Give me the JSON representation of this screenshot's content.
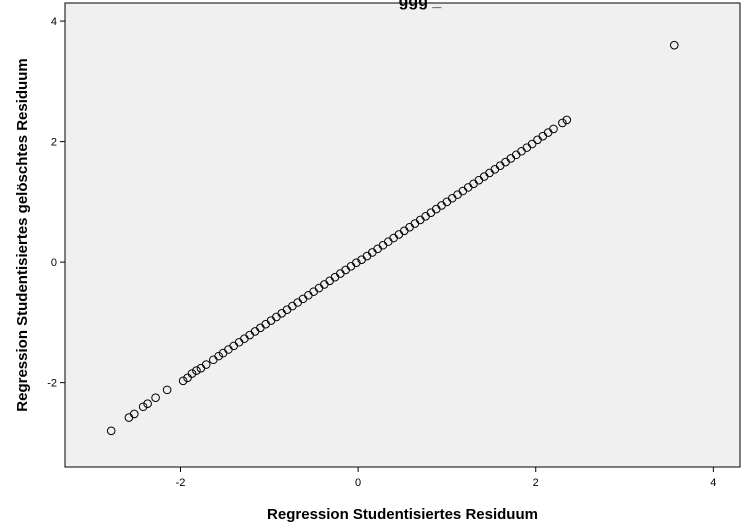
{
  "chart_data": {
    "type": "scatter",
    "title": "ggg       _",
    "xlabel": "Regression Studentisiertes Residuum",
    "ylabel": "Regression Studentisiertes gelöschtes Residuum",
    "xlim": [
      -3.3,
      4.3
    ],
    "ylim": [
      -3.4,
      4.3
    ],
    "x_ticks": [
      -2,
      0,
      2,
      4
    ],
    "y_ticks": [
      -2,
      0,
      2,
      4
    ],
    "grid": false,
    "plot_background": "#f0f0f0",
    "marker": "open-circle",
    "marker_color": "#000000",
    "points": [
      [
        -2.78,
        -2.8
      ],
      [
        -2.58,
        -2.58
      ],
      [
        -2.52,
        -2.52
      ],
      [
        -2.42,
        -2.4
      ],
      [
        -2.37,
        -2.35
      ],
      [
        -2.28,
        -2.25
      ],
      [
        -2.15,
        -2.12
      ],
      [
        -1.97,
        -1.97
      ],
      [
        -1.92,
        -1.92
      ],
      [
        -1.87,
        -1.85
      ],
      [
        -1.82,
        -1.8
      ],
      [
        -1.77,
        -1.76
      ],
      [
        -1.71,
        -1.7
      ],
      [
        -1.63,
        -1.62
      ],
      [
        -1.57,
        -1.56
      ],
      [
        -1.52,
        -1.51
      ],
      [
        -1.46,
        -1.45
      ],
      [
        -1.4,
        -1.39
      ],
      [
        -1.34,
        -1.33
      ],
      [
        -1.28,
        -1.27
      ],
      [
        -1.22,
        -1.21
      ],
      [
        -1.16,
        -1.15
      ],
      [
        -1.1,
        -1.09
      ],
      [
        -1.04,
        -1.03
      ],
      [
        -0.98,
        -0.97
      ],
      [
        -0.92,
        -0.91
      ],
      [
        -0.86,
        -0.85
      ],
      [
        -0.8,
        -0.79
      ],
      [
        -0.74,
        -0.73
      ],
      [
        -0.68,
        -0.67
      ],
      [
        -0.62,
        -0.61
      ],
      [
        -0.56,
        -0.55
      ],
      [
        -0.5,
        -0.49
      ],
      [
        -0.44,
        -0.43
      ],
      [
        -0.38,
        -0.37
      ],
      [
        -0.32,
        -0.31
      ],
      [
        -0.26,
        -0.25
      ],
      [
        -0.2,
        -0.19
      ],
      [
        -0.14,
        -0.13
      ],
      [
        -0.08,
        -0.07
      ],
      [
        -0.02,
        -0.01
      ],
      [
        0.04,
        0.04
      ],
      [
        0.1,
        0.1
      ],
      [
        0.16,
        0.16
      ],
      [
        0.22,
        0.22
      ],
      [
        0.28,
        0.28
      ],
      [
        0.34,
        0.34
      ],
      [
        0.4,
        0.4
      ],
      [
        0.46,
        0.46
      ],
      [
        0.52,
        0.52
      ],
      [
        0.58,
        0.58
      ],
      [
        0.64,
        0.64
      ],
      [
        0.7,
        0.7
      ],
      [
        0.76,
        0.76
      ],
      [
        0.82,
        0.82
      ],
      [
        0.88,
        0.88
      ],
      [
        0.94,
        0.94
      ],
      [
        1.0,
        1.0
      ],
      [
        1.06,
        1.06
      ],
      [
        1.12,
        1.12
      ],
      [
        1.18,
        1.18
      ],
      [
        1.24,
        1.24
      ],
      [
        1.3,
        1.3
      ],
      [
        1.36,
        1.36
      ],
      [
        1.42,
        1.42
      ],
      [
        1.48,
        1.48
      ],
      [
        1.54,
        1.54
      ],
      [
        1.6,
        1.6
      ],
      [
        1.66,
        1.66
      ],
      [
        1.72,
        1.72
      ],
      [
        1.78,
        1.78
      ],
      [
        1.84,
        1.84
      ],
      [
        1.9,
        1.9
      ],
      [
        1.96,
        1.96
      ],
      [
        2.02,
        2.03
      ],
      [
        2.08,
        2.09
      ],
      [
        2.14,
        2.15
      ],
      [
        2.2,
        2.21
      ],
      [
        2.3,
        2.31
      ],
      [
        2.35,
        2.36
      ],
      [
        3.56,
        3.6
      ]
    ]
  }
}
